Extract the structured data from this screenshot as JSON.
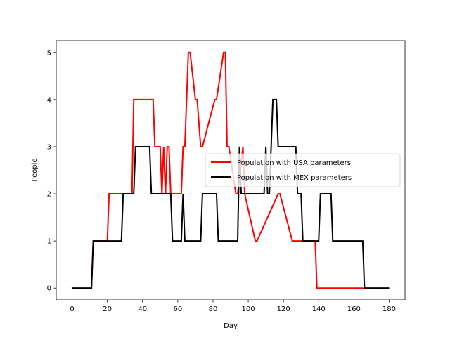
{
  "chart_data": {
    "type": "line",
    "title": "",
    "xlabel": "Day",
    "ylabel": "People",
    "xlim": [
      -9,
      189
    ],
    "ylim": [
      -0.25,
      5.25
    ],
    "xticks": [
      0,
      20,
      40,
      60,
      80,
      100,
      120,
      140,
      160,
      180
    ],
    "yticks": [
      0,
      1,
      2,
      3,
      4,
      5
    ],
    "grid": false,
    "legend_position": "center-right",
    "series": [
      {
        "name": "Population with USA parameters",
        "color": "#ff0000",
        "x": [
          0,
          11,
          12,
          20,
          21,
          34,
          35,
          46,
          47,
          50,
          51,
          52,
          53,
          54,
          55,
          56,
          57,
          62,
          63,
          64,
          66,
          67,
          70,
          71,
          73,
          74,
          81,
          82,
          86,
          87,
          88,
          89,
          93,
          94,
          97,
          98,
          104,
          105,
          117,
          118,
          125,
          126,
          137,
          138,
          139,
          140,
          166,
          180
        ],
        "y": [
          0,
          0,
          1,
          1,
          2,
          2,
          4,
          4,
          3,
          3,
          2,
          3,
          2,
          3,
          3,
          2,
          2,
          2,
          3,
          3,
          5,
          5,
          4,
          4,
          3,
          3,
          4,
          4,
          5,
          5,
          3,
          3,
          2,
          2,
          3,
          2,
          1,
          1,
          2,
          2,
          1,
          1,
          1,
          1,
          0,
          0,
          0,
          0
        ]
      },
      {
        "name": "Population with MEX parameters",
        "color": "#000000",
        "x": [
          0,
          11,
          12,
          28,
          29,
          35,
          36,
          44,
          45,
          56,
          57,
          62,
          63,
          64,
          73,
          74,
          82,
          83,
          94,
          95,
          96,
          97,
          109,
          110,
          111,
          112,
          113,
          114,
          116,
          117,
          127,
          128,
          130,
          131,
          140,
          141,
          147,
          148,
          165,
          166,
          180
        ],
        "y": [
          0,
          0,
          1,
          1,
          2,
          2,
          3,
          3,
          2,
          2,
          1,
          1,
          2,
          1,
          1,
          2,
          2,
          1,
          1,
          3,
          2,
          2,
          2,
          3,
          2,
          2,
          3,
          4,
          4,
          3,
          3,
          2,
          2,
          1,
          1,
          2,
          2,
          1,
          1,
          0,
          0
        ]
      }
    ]
  }
}
